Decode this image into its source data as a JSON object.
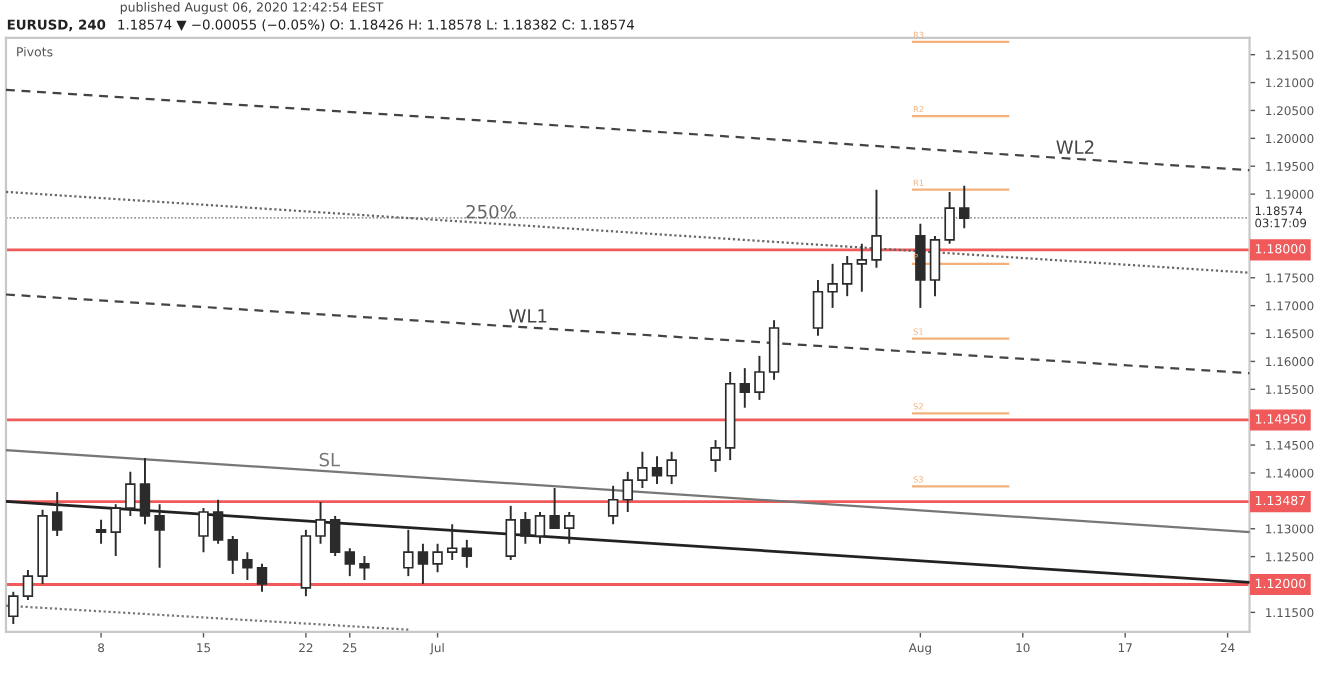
{
  "chart_data": {
    "type": "candlestick",
    "title": "EURUSD, 240",
    "subtitle": "1.18574 ▼ −0.00055 (−0.05%) O: 1.18426 H: 1.18578 L: 1.18382 C: 1.18574",
    "annotations": [
      "published August 06, 2020 12:42:54 EEST",
      "Pivots"
    ],
    "color": "#2b2b2b",
    "x": [
      "2020-06-02",
      "2020-06-03",
      "2020-06-04",
      "2020-06-05",
      "2020-06-08",
      "2020-06-09",
      "2020-06-10",
      "2020-06-11",
      "2020-06-12",
      "2020-06-15",
      "2020-06-16",
      "2020-06-17",
      "2020-06-18",
      "2020-06-19",
      "2020-06-22",
      "2020-06-23",
      "2020-06-24",
      "2020-06-25",
      "2020-06-26",
      "2020-06-29",
      "2020-06-30",
      "2020-07-01",
      "2020-07-02",
      "2020-07-03",
      "2020-07-06",
      "2020-07-07",
      "2020-07-08",
      "2020-07-09",
      "2020-07-10",
      "2020-07-13",
      "2020-07-14",
      "2020-07-15",
      "2020-07-16",
      "2020-07-17",
      "2020-07-20",
      "2020-07-21",
      "2020-07-22",
      "2020-07-23",
      "2020-07-24",
      "2020-07-27",
      "2020-07-28",
      "2020-07-29",
      "2020-07-30",
      "2020-07-31",
      "2020-08-03",
      "2020-08-04",
      "2020-08-05",
      "2020-08-06"
    ],
    "ohlc": [
      [
        1.1143,
        1.1187,
        1.1129,
        1.1179
      ],
      [
        1.1179,
        1.1226,
        1.1172,
        1.1215
      ],
      [
        1.1215,
        1.1334,
        1.1201,
        1.1323
      ],
      [
        1.133,
        1.1366,
        1.1287,
        1.1298
      ],
      [
        1.1298,
        1.1316,
        1.1273,
        1.1294
      ],
      [
        1.1294,
        1.1344,
        1.1251,
        1.1337
      ],
      [
        1.1337,
        1.1402,
        1.1323,
        1.138
      ],
      [
        1.138,
        1.1427,
        1.1308,
        1.1323
      ],
      [
        1.1323,
        1.1344,
        1.123,
        1.1298
      ],
      [
        1.1287,
        1.1337,
        1.1258,
        1.133
      ],
      [
        1.133,
        1.1352,
        1.1273,
        1.128
      ],
      [
        1.128,
        1.1287,
        1.1219,
        1.1244
      ],
      [
        1.1244,
        1.1258,
        1.1208,
        1.123
      ],
      [
        1.123,
        1.1237,
        1.1187,
        1.1201
      ],
      [
        1.1194,
        1.1298,
        1.1179,
        1.1287
      ],
      [
        1.1287,
        1.1348,
        1.1273,
        1.1316
      ],
      [
        1.1316,
        1.1323,
        1.1251,
        1.1258
      ],
      [
        1.1258,
        1.1265,
        1.1215,
        1.1237
      ],
      [
        1.1237,
        1.1251,
        1.1208,
        1.123
      ],
      [
        1.123,
        1.1298,
        1.1215,
        1.1258
      ],
      [
        1.1258,
        1.1273,
        1.1201,
        1.1237
      ],
      [
        1.1237,
        1.1273,
        1.1222,
        1.1258
      ],
      [
        1.1258,
        1.1308,
        1.1244,
        1.1265
      ],
      [
        1.1265,
        1.128,
        1.123,
        1.1251
      ],
      [
        1.1251,
        1.1341,
        1.1244,
        1.1316
      ],
      [
        1.1316,
        1.133,
        1.1273,
        1.1287
      ],
      [
        1.1287,
        1.133,
        1.1273,
        1.1323
      ],
      [
        1.1323,
        1.1373,
        1.1301,
        1.1301
      ],
      [
        1.1301,
        1.133,
        1.1273,
        1.1323
      ],
      [
        1.1323,
        1.1377,
        1.1308,
        1.1352
      ],
      [
        1.1352,
        1.1402,
        1.133,
        1.1387
      ],
      [
        1.1387,
        1.1438,
        1.1373,
        1.1409
      ],
      [
        1.1409,
        1.143,
        1.138,
        1.1395
      ],
      [
        1.1395,
        1.1438,
        1.138,
        1.1423
      ],
      [
        1.1423,
        1.1459,
        1.1402,
        1.1445
      ],
      [
        1.1445,
        1.1581,
        1.1423,
        1.156
      ],
      [
        1.156,
        1.1588,
        1.1517,
        1.1545
      ],
      [
        1.1545,
        1.161,
        1.1531,
        1.1581
      ],
      [
        1.1581,
        1.1674,
        1.1567,
        1.166
      ],
      [
        1.166,
        1.1746,
        1.1646,
        1.1725
      ],
      [
        1.1725,
        1.1775,
        1.1696,
        1.1739
      ],
      [
        1.1739,
        1.1789,
        1.1717,
        1.1775
      ],
      [
        1.1775,
        1.1811,
        1.1725,
        1.1782
      ],
      [
        1.1782,
        1.1908,
        1.1768,
        1.1825
      ],
      [
        1.1825,
        1.1847,
        1.1696,
        1.1746
      ],
      [
        1.1746,
        1.1825,
        1.1717,
        1.1818
      ],
      [
        1.1818,
        1.1904,
        1.1811,
        1.1875
      ],
      [
        1.1875,
        1.1915,
        1.1839,
        1.1857
      ]
    ],
    "series": [
      {
        "type": "line",
        "name": "WL2",
        "color": "#444444",
        "line_style": "dashed",
        "x": [
          "2020-06-01T12:00",
          "2020-08-25T12:00"
        ],
        "values": [
          1.2087,
          1.1943
        ]
      },
      {
        "type": "line",
        "name": "250%",
        "color": "#666666",
        "line_style": "dotted",
        "x": [
          "2020-06-01T12:00",
          "2020-08-25T12:00"
        ],
        "values": [
          1.1904,
          1.1759
        ]
      },
      {
        "type": "line",
        "name": "WL1",
        "color": "#444444",
        "line_style": "dashed",
        "x": [
          "2020-06-01T12:00",
          "2020-08-25T12:00"
        ],
        "values": [
          1.172,
          1.1579
        ]
      },
      {
        "type": "line",
        "name": "SL",
        "color": "#777777",
        "line_style": "solid",
        "x": [
          "2020-06-01T12:00",
          "2020-08-25T12:00"
        ],
        "values": [
          1.1441,
          1.1294
        ]
      },
      {
        "type": "line",
        "color": "#222222",
        "line_style": "solid",
        "x": [
          "2020-06-01T12:00",
          "2020-08-25T12:00"
        ],
        "values": [
          1.1349,
          1.1204
        ]
      },
      {
        "type": "line",
        "color": "#777777",
        "line_style": "dotted",
        "x": [
          "2020-06-01T12:00",
          "2020-06-29"
        ],
        "values": [
          1.1162,
          1.1119
        ]
      },
      {
        "type": "line",
        "name": "R3",
        "color": "#f3b07a",
        "line_style": "solid",
        "x": [
          "2020-08-02T12:00",
          "2020-08-09"
        ],
        "values": [
          1.2173,
          1.2173
        ]
      },
      {
        "type": "line",
        "name": "R2",
        "color": "#f3b07a",
        "line_style": "solid",
        "x": [
          "2020-08-02T12:00",
          "2020-08-09"
        ],
        "values": [
          1.204,
          1.204
        ]
      },
      {
        "type": "line",
        "name": "R1",
        "color": "#f3b07a",
        "line_style": "solid",
        "x": [
          "2020-08-02T12:00",
          "2020-08-09"
        ],
        "values": [
          1.1908,
          1.1908
        ]
      },
      {
        "type": "line",
        "name": "P",
        "color": "#f3b07a",
        "line_style": "solid",
        "x": [
          "2020-08-02T12:00",
          "2020-08-09"
        ],
        "values": [
          1.1775,
          1.1775
        ]
      },
      {
        "type": "line",
        "name": "S1",
        "color": "#f3b07a",
        "line_style": "solid",
        "x": [
          "2020-08-02T12:00",
          "2020-08-09"
        ],
        "values": [
          1.1641,
          1.1641
        ]
      },
      {
        "type": "line",
        "name": "S2",
        "color": "#f3b07a",
        "line_style": "solid",
        "x": [
          "2020-08-02T12:00",
          "2020-08-09"
        ],
        "values": [
          1.1507,
          1.1507
        ]
      },
      {
        "type": "line",
        "name": "S3",
        "color": "#f3b07a",
        "line_style": "solid",
        "x": [
          "2020-08-02T12:00",
          "2020-08-09"
        ],
        "values": [
          1.1376,
          1.1376
        ]
      }
    ],
    "ref_lines": [
      {
        "axis": "y",
        "value": 1.18,
        "label": "1.18000",
        "color": "#f05a5a",
        "line_style": "solid"
      },
      {
        "axis": "y",
        "value": 1.1495,
        "label": "1.14950",
        "color": "#f05a5a",
        "line_style": "solid"
      },
      {
        "axis": "y",
        "value": 1.13487,
        "label": "1.13487",
        "color": "#f05a5a",
        "line_style": "solid"
      },
      {
        "axis": "y",
        "value": 1.12,
        "label": "1.12000",
        "color": "#f05a5a",
        "line_style": "solid"
      },
      {
        "axis": "y",
        "value": 1.18574,
        "label": "1.18574\n03:17:09",
        "color": "#9a9a9a",
        "line_style": "dotted"
      }
    ],
    "xlim": [
      "2020-06-01T12:00",
      "2020-08-25T12:00"
    ],
    "xticks": [
      {
        "value": "2020-06-08",
        "label": "8"
      },
      {
        "value": "2020-06-15",
        "label": "15"
      },
      {
        "value": "2020-06-22",
        "label": "22"
      },
      {
        "value": "2020-06-25",
        "label": "25"
      },
      {
        "value": "2020-07-01",
        "label": "Jul"
      },
      {
        "value": "2020-08-03",
        "label": "Aug"
      },
      {
        "value": "2020-08-10",
        "label": "10"
      },
      {
        "value": "2020-08-17",
        "label": "17"
      },
      {
        "value": "2020-08-24",
        "label": "24"
      }
    ],
    "ylim": [
      1.1115,
      1.218
    ],
    "yticks": [
      {
        "value": 1.115,
        "label": "1.11500"
      },
      {
        "value": 1.125,
        "label": "1.12500"
      },
      {
        "value": 1.13,
        "label": "1.13000"
      },
      {
        "value": 1.14,
        "label": "1.14000"
      },
      {
        "value": 1.145,
        "label": "1.14500"
      },
      {
        "value": 1.155,
        "label": "1.15500"
      },
      {
        "value": 1.16,
        "label": "1.16000"
      },
      {
        "value": 1.165,
        "label": "1.16500"
      },
      {
        "value": 1.17,
        "label": "1.17000"
      },
      {
        "value": 1.175,
        "label": "1.17500"
      },
      {
        "value": 1.19,
        "label": "1.19000"
      },
      {
        "value": 1.195,
        "label": "1.19500"
      },
      {
        "value": 1.2,
        "label": "1.20000"
      },
      {
        "value": 1.205,
        "label": "1.20500"
      },
      {
        "value": 1.21,
        "label": "1.21000"
      },
      {
        "value": 1.215,
        "label": "1.21500"
      }
    ],
    "grid": false,
    "legend": false
  }
}
